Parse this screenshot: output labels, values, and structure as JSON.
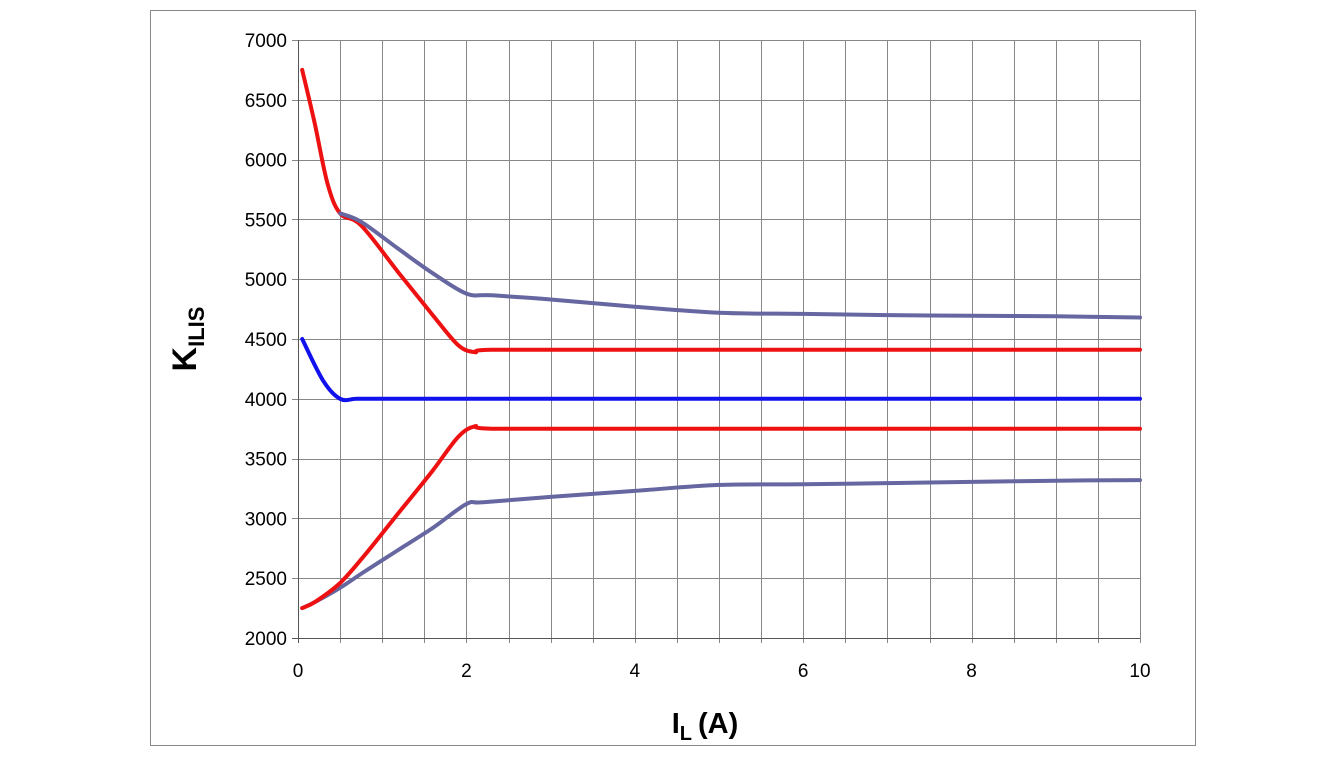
{
  "chart_data": {
    "type": "line",
    "xlabel": "I",
    "xlabel_sub": "L",
    "xlabel_unit": "(A)",
    "ylabel": "K",
    "ylabel_sub": "ILIS",
    "xlim": [
      0,
      10
    ],
    "ylim": [
      2000,
      7000
    ],
    "x_major_ticks": [
      0,
      2,
      4,
      6,
      8,
      10
    ],
    "x_grid_step": 0.5,
    "y_ticks": [
      2000,
      2500,
      3000,
      3500,
      4000,
      4500,
      5000,
      5500,
      6000,
      6500,
      7000
    ],
    "grid": true,
    "series": [
      {
        "color": "#6666a0",
        "points": [
          [
            0.05,
            2250
          ],
          [
            0.2,
            2300
          ],
          [
            0.5,
            2420
          ],
          [
            0.8,
            2560
          ],
          [
            1.2,
            2740
          ],
          [
            1.6,
            2920
          ],
          [
            2.0,
            3120
          ],
          [
            2.2,
            3135
          ],
          [
            3.0,
            3180
          ],
          [
            4.0,
            3230
          ],
          [
            5.0,
            3280
          ],
          [
            6.0,
            3285
          ],
          [
            7.0,
            3295
          ],
          [
            8.0,
            3305
          ],
          [
            9.0,
            3315
          ],
          [
            10.0,
            3320
          ]
        ]
      },
      {
        "color": "#ee1111",
        "points": [
          [
            0.05,
            2250
          ],
          [
            0.2,
            2300
          ],
          [
            0.5,
            2460
          ],
          [
            0.8,
            2700
          ],
          [
            1.2,
            3050
          ],
          [
            1.6,
            3400
          ],
          [
            1.9,
            3680
          ],
          [
            2.1,
            3770
          ],
          [
            2.3,
            3750
          ],
          [
            4.0,
            3750
          ],
          [
            6.0,
            3750
          ],
          [
            8.0,
            3750
          ],
          [
            10.0,
            3750
          ]
        ]
      },
      {
        "color": "#1111ee",
        "points": [
          [
            0.05,
            4500
          ],
          [
            0.3,
            4150
          ],
          [
            0.5,
            4000
          ],
          [
            0.7,
            4000
          ],
          [
            1.0,
            4000
          ],
          [
            2.0,
            4000
          ],
          [
            4.0,
            4000
          ],
          [
            6.0,
            4000
          ],
          [
            8.0,
            4000
          ],
          [
            10.0,
            4000
          ]
        ]
      },
      {
        "color": "#ee1111",
        "points": [
          [
            0.05,
            6750
          ],
          [
            0.2,
            6300
          ],
          [
            0.35,
            5800
          ],
          [
            0.5,
            5550
          ],
          [
            0.75,
            5450
          ],
          [
            1.2,
            5050
          ],
          [
            1.6,
            4700
          ],
          [
            1.9,
            4450
          ],
          [
            2.1,
            4390
          ],
          [
            2.3,
            4410
          ],
          [
            4.0,
            4410
          ],
          [
            6.0,
            4410
          ],
          [
            8.0,
            4410
          ],
          [
            10.0,
            4410
          ]
        ]
      },
      {
        "color": "#6666a0",
        "points": [
          [
            0.5,
            5550
          ],
          [
            0.75,
            5480
          ],
          [
            1.2,
            5250
          ],
          [
            1.6,
            5050
          ],
          [
            2.0,
            4880
          ],
          [
            2.3,
            4865
          ],
          [
            3.0,
            4830
          ],
          [
            4.0,
            4770
          ],
          [
            5.0,
            4720
          ],
          [
            6.0,
            4710
          ],
          [
            7.0,
            4700
          ],
          [
            8.0,
            4695
          ],
          [
            9.0,
            4690
          ],
          [
            10.0,
            4680
          ]
        ]
      }
    ]
  }
}
